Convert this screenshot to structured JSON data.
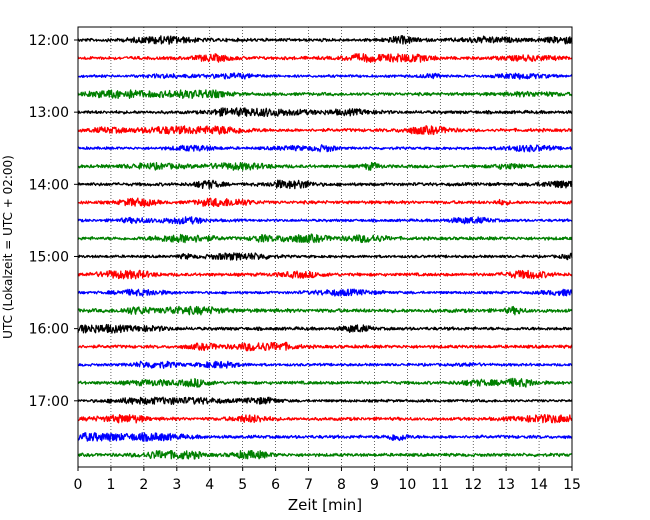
{
  "chart_data": {
    "type": "line",
    "title": "",
    "xlabel": "Zeit  [min]",
    "ylabel": "UTC (Lokalzeit = UTC + 02:00)",
    "xlim": [
      0,
      15
    ],
    "x_ticks": [
      "0",
      "1",
      "2",
      "3",
      "4",
      "5",
      "6",
      "7",
      "8",
      "9",
      "10",
      "11",
      "12",
      "13",
      "14",
      "15"
    ],
    "grid": "vertical dotted",
    "row_interval_min": 15,
    "row_colors": [
      "#000000",
      "#ff0000",
      "#0000ff",
      "#008000"
    ],
    "y_tick_labels": [
      "12:00",
      "13:00",
      "14:00",
      "15:00",
      "16:00",
      "17:00"
    ],
    "rows": [
      {
        "start": "12:00",
        "color": "#000000",
        "amplitude": 0.6
      },
      {
        "start": "12:15",
        "color": "#ff0000",
        "amplitude": 0.6
      },
      {
        "start": "12:30",
        "color": "#0000ff",
        "amplitude": 0.5
      },
      {
        "start": "12:45",
        "color": "#008000",
        "amplitude": 0.6
      },
      {
        "start": "13:00",
        "color": "#000000",
        "amplitude": 0.6
      },
      {
        "start": "13:15",
        "color": "#ff0000",
        "amplitude": 0.6
      },
      {
        "start": "13:30",
        "color": "#0000ff",
        "amplitude": 0.5
      },
      {
        "start": "13:45",
        "color": "#008000",
        "amplitude": 0.6
      },
      {
        "start": "14:00",
        "color": "#000000",
        "amplitude": 0.6
      },
      {
        "start": "14:15",
        "color": "#ff0000",
        "amplitude": 0.6
      },
      {
        "start": "14:30",
        "color": "#0000ff",
        "amplitude": 0.5
      },
      {
        "start": "14:45",
        "color": "#008000",
        "amplitude": 0.6
      },
      {
        "start": "15:00",
        "color": "#000000",
        "amplitude": 0.5
      },
      {
        "start": "15:15",
        "color": "#ff0000",
        "amplitude": 0.6
      },
      {
        "start": "15:30",
        "color": "#0000ff",
        "amplitude": 0.5
      },
      {
        "start": "15:45",
        "color": "#008000",
        "amplitude": 0.7
      },
      {
        "start": "16:00",
        "color": "#000000",
        "amplitude": 0.6
      },
      {
        "start": "16:15",
        "color": "#ff0000",
        "amplitude": 0.6
      },
      {
        "start": "16:30",
        "color": "#0000ff",
        "amplitude": 0.5
      },
      {
        "start": "16:45",
        "color": "#008000",
        "amplitude": 0.6
      },
      {
        "start": "17:00",
        "color": "#000000",
        "amplitude": 0.5
      },
      {
        "start": "17:15",
        "color": "#ff0000",
        "amplitude": 0.6
      },
      {
        "start": "17:30",
        "color": "#0000ff",
        "amplitude": 0.6
      },
      {
        "start": "17:45",
        "color": "#008000",
        "amplitude": 0.6
      }
    ]
  }
}
